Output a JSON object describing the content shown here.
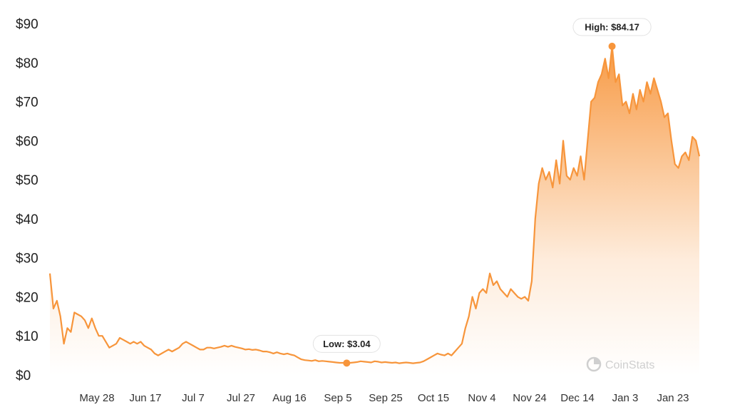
{
  "chart_data": {
    "type": "area",
    "title": "",
    "xlabel": "",
    "ylabel": "",
    "ylim": [
      0,
      90
    ],
    "y_tick_values": [
      0,
      10,
      20,
      30,
      40,
      50,
      60,
      70,
      80,
      90
    ],
    "y_tick_labels": [
      "$0",
      "$10",
      "$20",
      "$30",
      "$40",
      "$50",
      "$60",
      "$70",
      "$80",
      "$90"
    ],
    "x_tick_labels": [
      "May 28",
      "Jun 17",
      "Jul 7",
      "Jul 27",
      "Aug 16",
      "Sep 5",
      "Sep 25",
      "Oct 15",
      "Nov 4",
      "Nov 24",
      "Dec 14",
      "Jan 3",
      "Jan 23"
    ],
    "grid": false,
    "line_color": "#f7953b",
    "fill_color": "#f7953b",
    "series": [
      {
        "values": [
          26,
          17,
          19,
          15,
          8,
          12,
          11,
          16,
          15.5,
          15,
          14,
          12,
          14.5,
          12,
          10,
          10,
          8.5,
          7,
          7.5,
          8,
          9.5,
          9,
          8.5,
          8,
          8.5,
          8,
          8.5,
          7.5,
          7,
          6.5,
          5.5,
          5,
          5.5,
          6,
          6.5,
          6,
          6.5,
          7,
          8,
          8.5,
          8,
          7.5,
          7,
          6.5,
          6.5,
          7,
          7,
          6.8,
          7,
          7.2,
          7.5,
          7.2,
          7.5,
          7.2,
          7,
          6.8,
          6.5,
          6.6,
          6.4,
          6.5,
          6.3,
          6,
          6,
          5.8,
          5.5,
          5.8,
          5.5,
          5.3,
          5.5,
          5.2,
          5,
          4.5,
          4,
          3.8,
          3.7,
          3.6,
          3.8,
          3.5,
          3.6,
          3.5,
          3.4,
          3.3,
          3.2,
          3.1,
          3.1,
          3.04,
          3.1,
          3.2,
          3.3,
          3.5,
          3.4,
          3.3,
          3.2,
          3.5,
          3.4,
          3.2,
          3.3,
          3.2,
          3.1,
          3.2,
          3,
          3.1,
          3.2,
          3.1,
          3,
          3.1,
          3.2,
          3.5,
          4,
          4.5,
          5,
          5.5,
          5.2,
          5,
          5.5,
          5,
          6,
          7,
          8,
          12,
          15,
          20,
          17,
          21,
          22,
          21,
          26,
          23,
          24,
          22,
          21,
          20,
          22,
          21,
          20,
          19.5,
          20,
          19,
          24,
          40,
          49,
          53,
          50,
          52,
          48,
          55,
          49,
          60,
          51,
          50,
          53,
          51,
          56,
          50,
          60,
          70,
          71,
          75,
          77,
          81,
          76,
          84.17,
          75,
          77,
          69,
          70,
          67,
          72,
          68,
          73,
          70,
          75,
          72,
          76,
          73,
          70,
          66,
          67,
          60,
          54,
          53,
          56,
          57,
          55,
          61,
          60,
          56
        ]
      }
    ],
    "annotations": [
      {
        "label": "High: $84.17",
        "value": 84.17
      },
      {
        "label": "Low: $3.04",
        "value": 3.04
      }
    ],
    "watermark": "CoinStats"
  }
}
